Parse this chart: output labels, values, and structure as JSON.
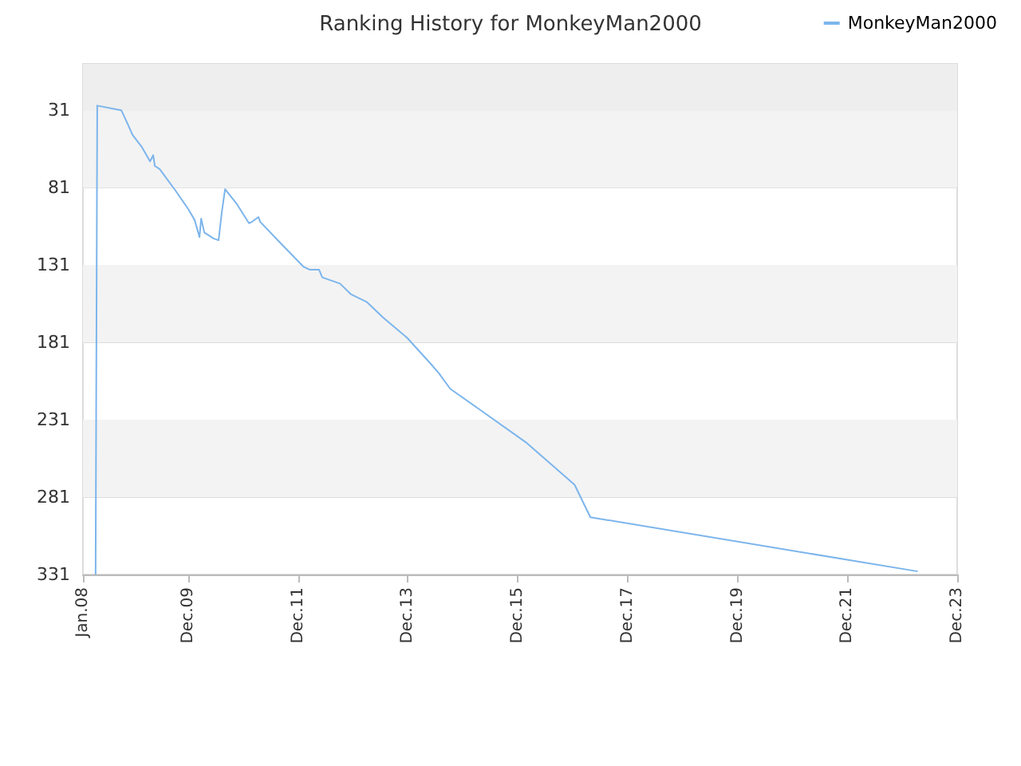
{
  "chart_data": {
    "type": "line",
    "title": "Ranking History for MonkeyMan2000",
    "x": [
      "2008-03-25",
      "2008-04-05",
      "2008-09-12",
      "2008-10-25",
      "2008-11-26",
      "2009-01-28",
      "2009-03-22",
      "2009-04-12",
      "2009-04-23",
      "2009-05-25",
      "2009-09-08",
      "2009-12-02",
      "2010-01-13",
      "2010-02-14",
      "2010-02-25",
      "2010-03-18",
      "2010-05-21",
      "2010-06-21",
      "2010-07-12",
      "2010-08-03",
      "2010-10-16",
      "2011-01-09",
      "2011-01-30",
      "2011-03-13",
      "2011-03-24",
      "2011-07-29",
      "2012-01-05",
      "2012-02-16",
      "2012-04-19",
      "2012-05-10",
      "2012-09-05",
      "2012-11-18",
      "2013-03-04",
      "2013-06-19",
      "2013-11-25",
      "2014-05-03",
      "2014-06-25",
      "2014-09-08",
      "2015-03-17",
      "2016-01-30",
      "2016-12-13",
      "2017-03-28",
      "2023-03-14"
    ],
    "series": [
      {
        "name": "MonkeyMan2000",
        "color": "#7cb5ec",
        "values": [
          331,
          28,
          31,
          40,
          47,
          55,
          64,
          60,
          67,
          69,
          83,
          95,
          102,
          113,
          101,
          110,
          114,
          115,
          97,
          82,
          91,
          104,
          103,
          100,
          103,
          116,
          132,
          134,
          134,
          139,
          143,
          150,
          155,
          165,
          178,
          195,
          201,
          211,
          224,
          246,
          273,
          294,
          329
        ]
      }
    ],
    "xlim": [
      "2008-01-01",
      "2023-12-01"
    ],
    "xticks": [
      {
        "value": "2008-01-01",
        "label": "Jan.08"
      },
      {
        "value": "2009-12-01",
        "label": "Dec.09"
      },
      {
        "value": "2011-12-01",
        "label": "Dec.11"
      },
      {
        "value": "2013-12-01",
        "label": "Dec.13"
      },
      {
        "value": "2015-12-01",
        "label": "Dec.15"
      },
      {
        "value": "2017-12-01",
        "label": "Dec.17"
      },
      {
        "value": "2019-12-01",
        "label": "Dec.19"
      },
      {
        "value": "2021-12-01",
        "label": "Dec.21"
      },
      {
        "value": "2023-12-01",
        "label": "Dec.23"
      }
    ],
    "ylim": [
      331,
      1
    ],
    "yticks": [
      31,
      81,
      131,
      181,
      231,
      281,
      331
    ],
    "bands": [
      {
        "axis": "y",
        "from": 1,
        "to": 31,
        "color": "#eeeeee"
      },
      {
        "axis": "y",
        "from": 31,
        "to": 81,
        "color": "#f3f3f3"
      },
      {
        "axis": "y",
        "from": 131,
        "to": 181,
        "color": "#f3f3f3"
      },
      {
        "axis": "y",
        "from": 231,
        "to": 281,
        "color": "#f3f3f3"
      }
    ],
    "grid": "y",
    "legend": "top right",
    "marker": "none",
    "line_style": "solid"
  }
}
